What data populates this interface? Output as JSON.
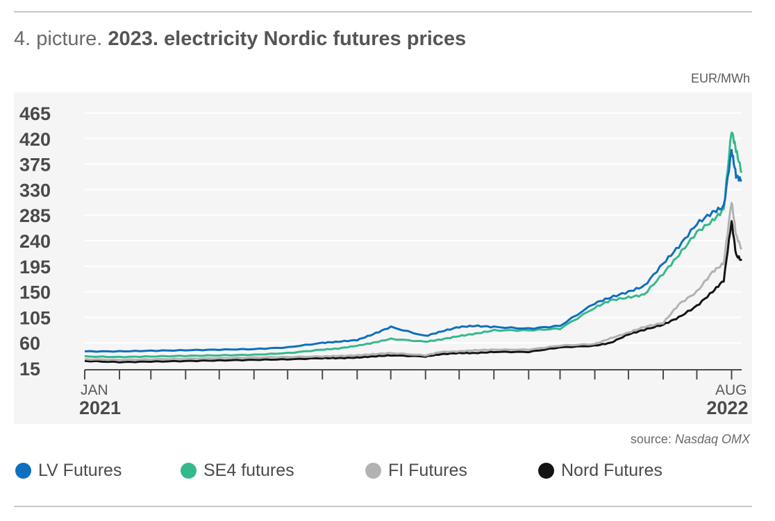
{
  "header": {
    "prefix": "4. picture.",
    "title": "2023. electricity Nordic futures prices",
    "unit": "EUR/MWh"
  },
  "footer": {
    "source_label": "source:",
    "source_name": "Nasdaq OMX"
  },
  "colors": {
    "LV Futures": "#0e6fbe",
    "SE4 futures": "#35b88e",
    "FI Futures": "#b2b2b2",
    "Nord Futures": "#141414",
    "plot_bg": "#f5f5f5",
    "grid": "#ffffff"
  },
  "chart_data": {
    "type": "line",
    "title": "2023. electricity Nordic futures prices",
    "ylabel": "EUR/MWh",
    "ylim": [
      15,
      465
    ],
    "yticks": [
      15,
      60,
      105,
      150,
      195,
      240,
      285,
      330,
      375,
      420,
      465
    ],
    "xlim": [
      "2021-01",
      "2022-08"
    ],
    "xtick_labels": [
      {
        "month": "JAN",
        "year": "2021",
        "x": "2021-01"
      },
      {
        "month": "AUG",
        "year": "2022",
        "x": "2022-08"
      }
    ],
    "legend_position": "bottom",
    "grid": true,
    "x": [
      "2021-01-01",
      "2021-02-01",
      "2021-03-01",
      "2021-04-01",
      "2021-05-01",
      "2021-06-01",
      "2021-07-01",
      "2021-08-01",
      "2021-08-15",
      "2021-09-01",
      "2021-09-15",
      "2021-10-01",
      "2021-11-01",
      "2021-11-15",
      "2021-12-01",
      "2021-12-15",
      "2022-01-01",
      "2022-02-01",
      "2022-03-01",
      "2022-04-01",
      "2022-04-15",
      "2022-05-01",
      "2022-05-15",
      "2022-06-01",
      "2022-06-15",
      "2022-07-01",
      "2022-07-15",
      "2022-07-25",
      "2022-08-01",
      "2022-08-05",
      "2022-08-10"
    ],
    "series": [
      {
        "name": "LV Futures",
        "values": [
          45,
          45,
          46,
          47,
          48,
          49,
          52,
          60,
          62,
          65,
          75,
          88,
          72,
          80,
          88,
          90,
          88,
          85,
          90,
          130,
          140,
          150,
          160,
          200,
          230,
          270,
          290,
          300,
          400,
          355,
          345
        ]
      },
      {
        "name": "SE4 futures",
        "values": [
          36,
          35,
          36,
          37,
          38,
          39,
          42,
          48,
          50,
          55,
          60,
          67,
          62,
          66,
          72,
          76,
          82,
          82,
          85,
          122,
          135,
          140,
          145,
          182,
          215,
          255,
          275,
          295,
          435,
          400,
          360
        ]
      },
      {
        "name": "FI Futures",
        "values": [
          31,
          30,
          31,
          32,
          33,
          34,
          35,
          36,
          37,
          38,
          40,
          42,
          38,
          44,
          45,
          47,
          48,
          48,
          55,
          58,
          68,
          78,
          88,
          95,
          128,
          150,
          185,
          200,
          310,
          250,
          225
        ]
      },
      {
        "name": "Nord Futures",
        "values": [
          28,
          26,
          27,
          28,
          29,
          30,
          31,
          33,
          33,
          34,
          36,
          38,
          36,
          40,
          42,
          42,
          44,
          44,
          52,
          55,
          60,
          75,
          83,
          92,
          105,
          125,
          150,
          170,
          275,
          215,
          205
        ]
      }
    ]
  }
}
